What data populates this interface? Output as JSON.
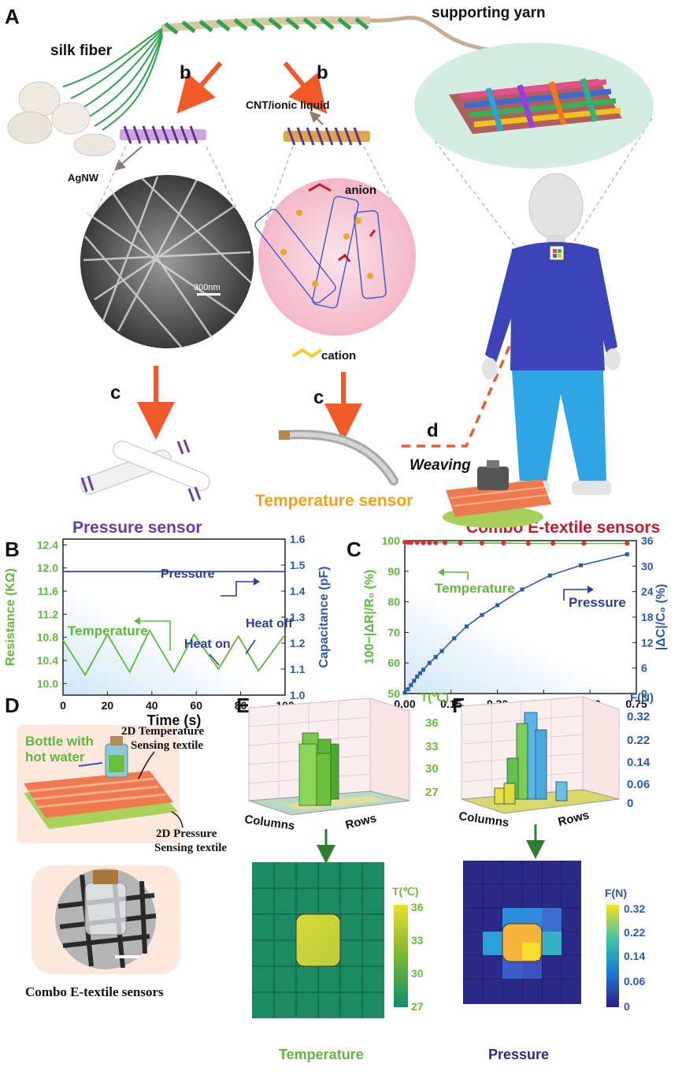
{
  "panels": {
    "A": {
      "letter": "A",
      "labels": {
        "silk_fiber": "silk fiber",
        "supporting_yarn": "supporting yarn",
        "cnt_ionic_liquid": "CNT/ionic liquid",
        "agnw": "AgNW",
        "anion": "anion",
        "cation": "cation",
        "scale_bar": "300nm",
        "weaving": "Weaving",
        "step_b": "b",
        "step_c": "c",
        "step_d": "d"
      },
      "captions": {
        "pressure": "Pressure sensor",
        "temperature": "Temperature sensor",
        "combo": "Combo E-textile sensors"
      }
    },
    "B": {
      "letter": "B"
    },
    "C": {
      "letter": "C"
    },
    "D": {
      "letter": "D",
      "labels": {
        "bottle": [
          "Bottle with",
          "hot water"
        ],
        "temp_textile": [
          "2D Temperature",
          "Sensing textile"
        ],
        "pressure_textile": [
          "2D Pressure",
          "Sensing textile"
        ],
        "caption": "Combo E-textile sensors"
      }
    },
    "E": {
      "letter": "E",
      "axis_columns": "Columns",
      "axis_rows": "Rows",
      "unit": "T(℃)",
      "ticks": [
        "36",
        "33",
        "30",
        "27"
      ],
      "colorbar_ticks": [
        "36",
        "33",
        "30",
        "27"
      ],
      "caption": "Temperature"
    },
    "F": {
      "letter": "F",
      "axis_columns": "Columns",
      "axis_rows": "Rows",
      "unit": "F(N)",
      "ticks": [
        "0.32",
        "0.22",
        "0.14",
        "0.06",
        "0"
      ],
      "colorbar_ticks": [
        "0.32",
        "0.22",
        "0.14",
        "0.06",
        "0"
      ],
      "caption": "Pressure"
    }
  },
  "chart_data": [
    {
      "type": "line",
      "panel": "B",
      "xlabel": "Time (s)",
      "ylabel_left": "Resistance (KΩ)",
      "ylabel_right": "Capacitance (pF)",
      "xlim": [
        0,
        100
      ],
      "ylim_left": [
        9.8,
        12.5
      ],
      "ylim_right": [
        1.0,
        1.6
      ],
      "xticks": [
        "0",
        "20",
        "40",
        "60",
        "80",
        "100"
      ],
      "yticks_left": [
        "10.0",
        "10.4",
        "10.8",
        "11.2",
        "11.6",
        "12.0",
        "12.4"
      ],
      "yticks_right": [
        "1.0",
        "1.1",
        "1.2",
        "1.3",
        "1.4",
        "1.5",
        "1.6"
      ],
      "annotations": {
        "pressure": "Pressure",
        "temperature": "Temperature",
        "heat_on": "Heat on",
        "heat_off": "Heat off"
      },
      "series": [
        {
          "name": "Temperature",
          "axis": "left",
          "color": "#5fb83a",
          "x": [
            0,
            10,
            20,
            30,
            39,
            50,
            59,
            70,
            79,
            88,
            100
          ],
          "y": [
            10.75,
            10.15,
            10.85,
            10.2,
            10.92,
            10.2,
            10.85,
            10.25,
            10.82,
            10.22,
            10.85
          ]
        },
        {
          "name": "Pressure",
          "axis": "right",
          "color": "#2a3f9a",
          "x": [
            0,
            100
          ],
          "y": [
            1.475,
            1.475
          ]
        }
      ]
    },
    {
      "type": "scatter",
      "panel": "C",
      "xlabel": "Force (N)",
      "ylabel_left": "100−|ΔR|/R₀ (%)",
      "ylabel_right": "|ΔC|/C₀ (%)",
      "xlim": [
        0,
        0.75
      ],
      "ylim_left": [
        50,
        100
      ],
      "ylim_right": [
        0,
        36
      ],
      "xticks": [
        "0.00",
        "0.15",
        "0.30",
        "0.45",
        "0.60",
        "0.75"
      ],
      "yticks_left": [
        "50",
        "60",
        "70",
        "80",
        "90",
        "100"
      ],
      "yticks_right": [
        "0",
        "6",
        "12",
        "18",
        "24",
        "30",
        "36"
      ],
      "annotations": {
        "temperature": "Temperature",
        "pressure": "Pressure"
      },
      "series": [
        {
          "name": "Temperature",
          "axis": "left",
          "color": "#d9302c",
          "x": [
            0,
            0.01,
            0.02,
            0.04,
            0.06,
            0.08,
            0.1,
            0.13,
            0.18,
            0.25,
            0.32,
            0.4,
            0.48,
            0.58,
            0.72
          ],
          "y": [
            99.5,
            99.4,
            99.4,
            99.4,
            99.3,
            99.3,
            99.3,
            99.3,
            99.2,
            99.2,
            99.2,
            99.1,
            99.1,
            99.1,
            99.1
          ]
        },
        {
          "name": "Pressure",
          "axis": "right",
          "color": "#2a5aa8",
          "x": [
            0.0,
            0.01,
            0.02,
            0.03,
            0.04,
            0.05,
            0.06,
            0.08,
            0.1,
            0.12,
            0.16,
            0.2,
            0.25,
            0.3,
            0.38,
            0.47,
            0.57,
            0.72
          ],
          "y": [
            0.2,
            1.0,
            2.0,
            3.0,
            4.0,
            4.8,
            5.6,
            7.2,
            8.6,
            10.0,
            13.0,
            15.8,
            18.5,
            20.8,
            24.5,
            27.8,
            30.2,
            32.8
          ]
        }
      ]
    }
  ]
}
